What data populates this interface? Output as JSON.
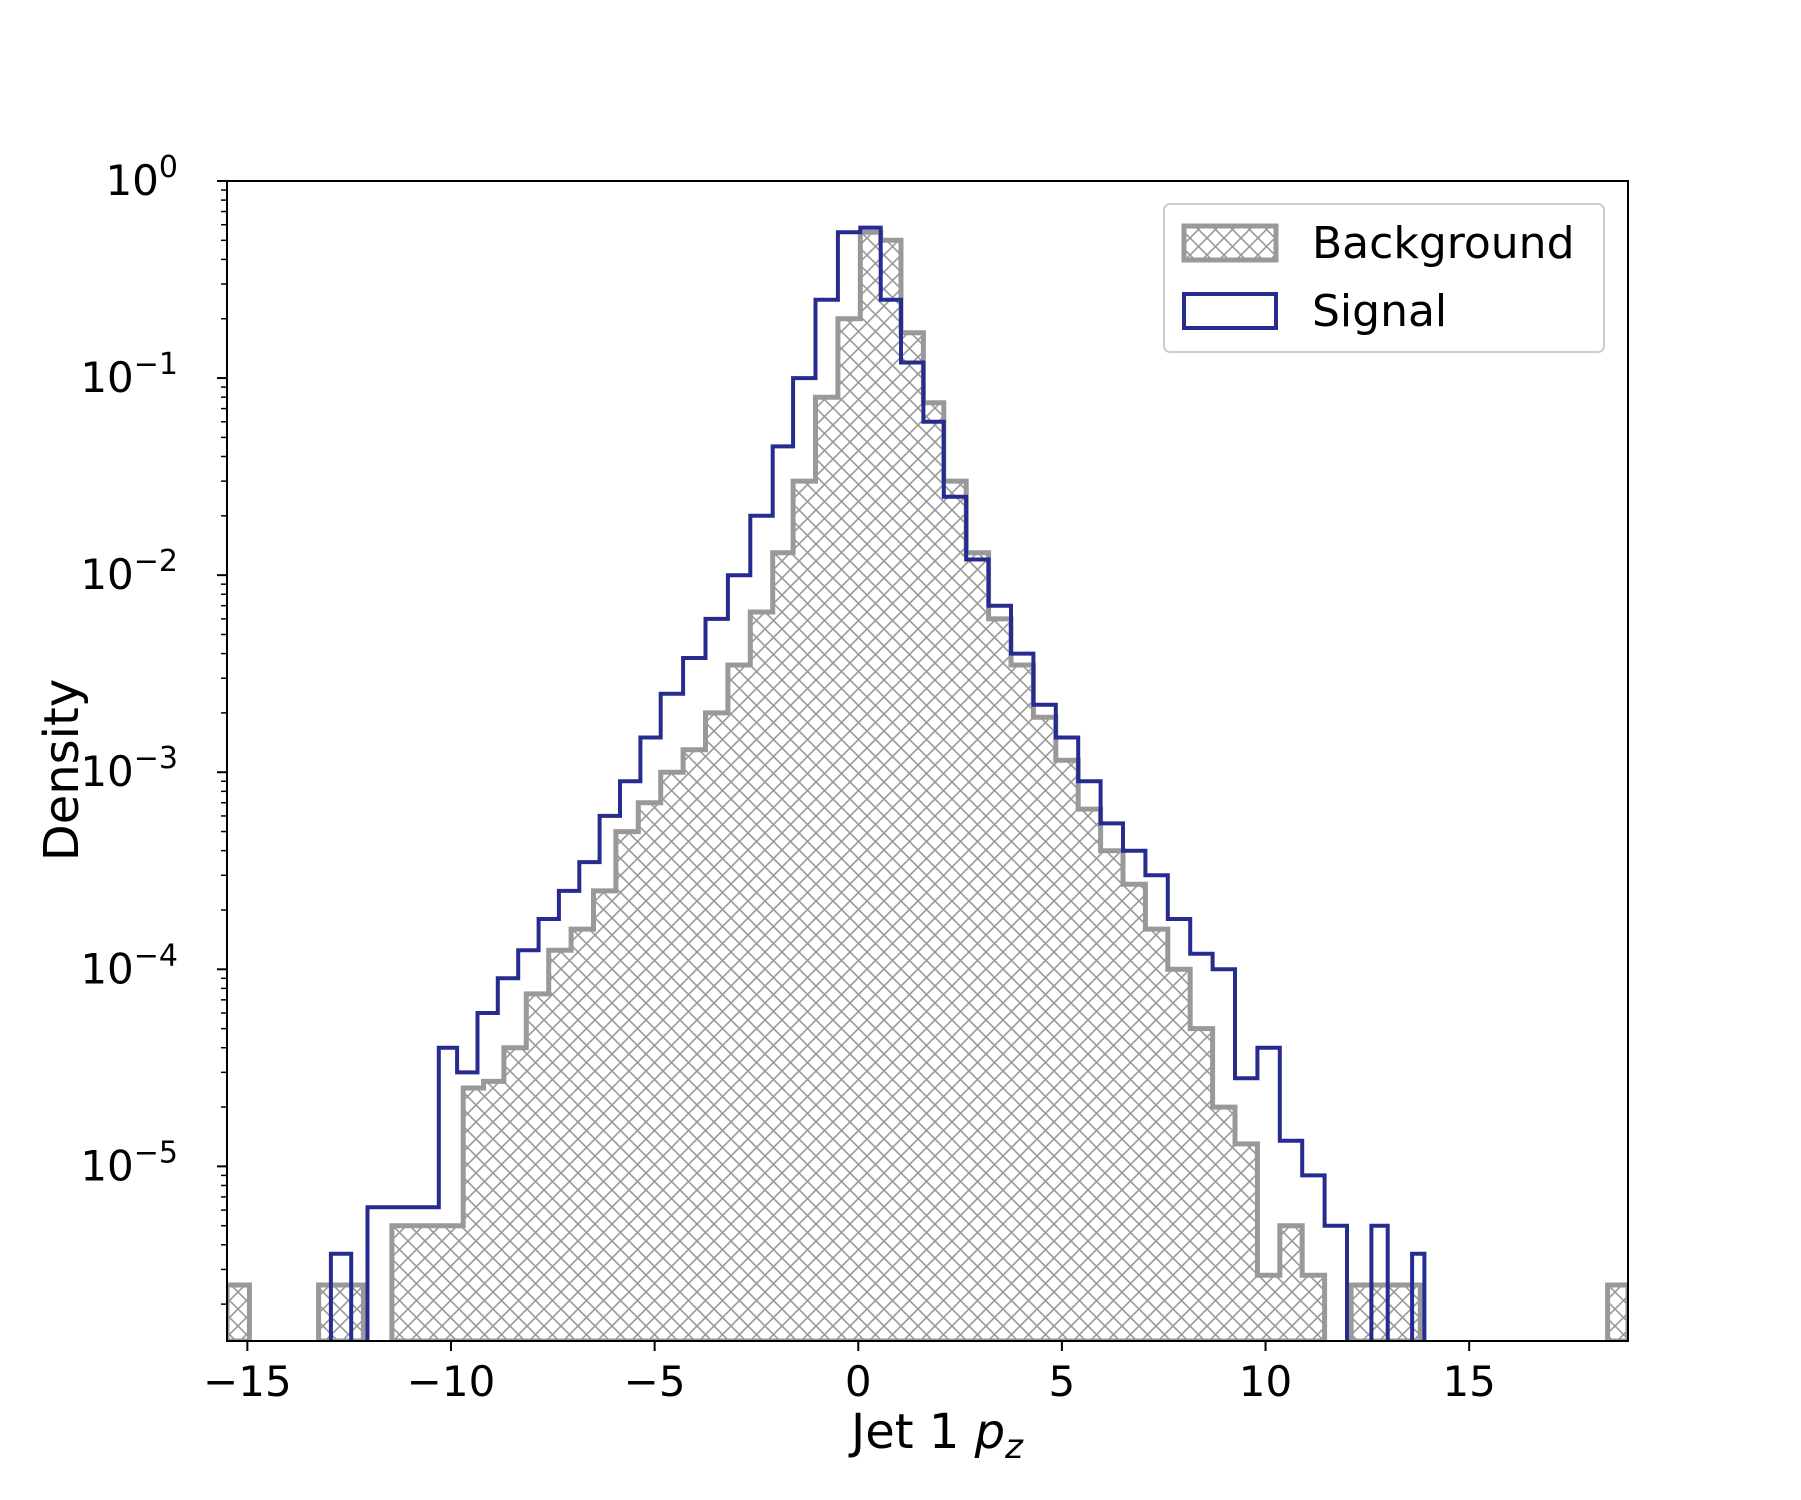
{
  "chart_data": {
    "type": "histogram",
    "ylabel": "Density",
    "xlabel_main": "Jet 1 ",
    "xlabel_var": "p",
    "xlabel_sub": "z",
    "xlim": [
      -15.5,
      18.9
    ],
    "ylim": [
      1.3e-06,
      1.0
    ],
    "yscale": "log",
    "xticks": [
      -15,
      -10,
      -5,
      0,
      5,
      10,
      15
    ],
    "xtick_labels": [
      "−15",
      "−10",
      "−5",
      "0",
      "5",
      "10",
      "15"
    ],
    "yticks": [
      {
        "value": 1,
        "base": "10",
        "exp": "0"
      },
      {
        "value": 0.1,
        "base": "10",
        "exp": "−1"
      },
      {
        "value": 0.01,
        "base": "10",
        "exp": "−2"
      },
      {
        "value": 0.001,
        "base": "10",
        "exp": "−3"
      },
      {
        "value": 0.0001,
        "base": "10",
        "exp": "−4"
      },
      {
        "value": 1e-05,
        "base": "10",
        "exp": "−5"
      }
    ],
    "legend": {
      "position": "upper right",
      "entries": [
        "Background",
        "Signal"
      ]
    },
    "series": [
      {
        "name": "Background",
        "style": "hatched",
        "color": "#999999",
        "bins": [
          [
            -15.5,
            -14.95,
            2.5e-06
          ],
          [
            -13.25,
            -12.15,
            2.5e-06
          ],
          [
            -11.45,
            -9.7,
            5e-06
          ],
          [
            -9.7,
            -9.2,
            2.5e-05
          ],
          [
            -9.2,
            -8.7,
            2.7e-05
          ],
          [
            -8.7,
            -8.15,
            4e-05
          ],
          [
            -8.15,
            -7.6,
            7.5e-05
          ],
          [
            -7.6,
            -7.05,
            0.000125
          ],
          [
            -7.05,
            -6.5,
            0.00016
          ],
          [
            -6.5,
            -5.95,
            0.00025
          ],
          [
            -5.95,
            -5.4,
            0.0005
          ],
          [
            -5.4,
            -4.85,
            0.0007
          ],
          [
            -4.85,
            -4.3,
            0.001
          ],
          [
            -4.3,
            -3.75,
            0.0013
          ],
          [
            -3.75,
            -3.2,
            0.002
          ],
          [
            -3.2,
            -2.65,
            0.0035
          ],
          [
            -2.65,
            -2.1,
            0.0065
          ],
          [
            -2.1,
            -1.6,
            0.013
          ],
          [
            -1.6,
            -1.05,
            0.03
          ],
          [
            -1.05,
            -0.5,
            0.08
          ],
          [
            -0.5,
            0.05,
            0.2
          ],
          [
            0.05,
            0.55,
            0.55
          ],
          [
            0.55,
            1.05,
            0.5
          ],
          [
            1.05,
            1.6,
            0.17
          ],
          [
            1.6,
            2.1,
            0.075
          ],
          [
            2.1,
            2.65,
            0.03
          ],
          [
            2.65,
            3.2,
            0.013
          ],
          [
            3.2,
            3.75,
            0.006
          ],
          [
            3.75,
            4.3,
            0.0035
          ],
          [
            4.3,
            4.85,
            0.0019
          ],
          [
            4.85,
            5.4,
            0.00115
          ],
          [
            5.4,
            5.95,
            0.00065
          ],
          [
            5.95,
            6.5,
            0.0004
          ],
          [
            6.5,
            7.05,
            0.00027
          ],
          [
            7.05,
            7.6,
            0.00016
          ],
          [
            7.6,
            8.15,
            0.0001
          ],
          [
            8.15,
            8.7,
            5e-05
          ],
          [
            8.7,
            9.25,
            2e-05
          ],
          [
            9.25,
            9.8,
            1.3e-05
          ],
          [
            9.8,
            10.35,
            2.8e-06
          ],
          [
            10.35,
            10.9,
            5e-06
          ],
          [
            10.9,
            11.45,
            2.8e-06
          ],
          [
            12.1,
            13.8,
            2.5e-06
          ],
          [
            18.4,
            18.9,
            2.5e-06
          ]
        ]
      },
      {
        "name": "Signal",
        "style": "step",
        "color": "#262b8f",
        "bins": [
          [
            -12.95,
            -12.45,
            3.6e-06
          ],
          [
            -12.05,
            -10.3,
            6.2e-06
          ],
          [
            -10.3,
            -9.85,
            4e-05
          ],
          [
            -9.85,
            -9.35,
            3e-05
          ],
          [
            -9.35,
            -8.85,
            6e-05
          ],
          [
            -8.85,
            -8.35,
            9e-05
          ],
          [
            -8.35,
            -7.85,
            0.000125
          ],
          [
            -7.85,
            -7.35,
            0.00018
          ],
          [
            -7.35,
            -6.85,
            0.00025
          ],
          [
            -6.85,
            -6.35,
            0.00035
          ],
          [
            -6.35,
            -5.85,
            0.0006
          ],
          [
            -5.85,
            -5.35,
            0.0009
          ],
          [
            -5.35,
            -4.85,
            0.0015
          ],
          [
            -4.85,
            -4.3,
            0.0025
          ],
          [
            -4.3,
            -3.75,
            0.0038
          ],
          [
            -3.75,
            -3.2,
            0.006
          ],
          [
            -3.2,
            -2.65,
            0.01
          ],
          [
            -2.65,
            -2.1,
            0.02
          ],
          [
            -2.1,
            -1.6,
            0.045
          ],
          [
            -1.6,
            -1.05,
            0.1
          ],
          [
            -1.05,
            -0.5,
            0.25
          ],
          [
            -0.5,
            0.05,
            0.55
          ],
          [
            0.05,
            0.55,
            0.58
          ],
          [
            0.55,
            1.05,
            0.25
          ],
          [
            1.05,
            1.6,
            0.12
          ],
          [
            1.6,
            2.1,
            0.06
          ],
          [
            2.1,
            2.65,
            0.025
          ],
          [
            2.65,
            3.2,
            0.012
          ],
          [
            3.2,
            3.75,
            0.007
          ],
          [
            3.75,
            4.3,
            0.004
          ],
          [
            4.3,
            4.85,
            0.0022
          ],
          [
            4.85,
            5.4,
            0.0015
          ],
          [
            5.4,
            5.95,
            0.0009
          ],
          [
            5.95,
            6.5,
            0.00055
          ],
          [
            6.5,
            7.05,
            0.0004
          ],
          [
            7.05,
            7.6,
            0.0003
          ],
          [
            7.6,
            8.15,
            0.00018
          ],
          [
            8.15,
            8.7,
            0.00012
          ],
          [
            8.7,
            9.25,
            0.0001
          ],
          [
            9.25,
            9.8,
            2.8e-05
          ],
          [
            9.8,
            10.35,
            4e-05
          ],
          [
            10.35,
            10.9,
            1.35e-05
          ],
          [
            10.9,
            11.45,
            9e-06
          ],
          [
            11.45,
            12.0,
            5e-06
          ],
          [
            12.6,
            13.0,
            5e-06
          ],
          [
            13.6,
            13.9,
            3.6e-06
          ]
        ]
      }
    ]
  }
}
